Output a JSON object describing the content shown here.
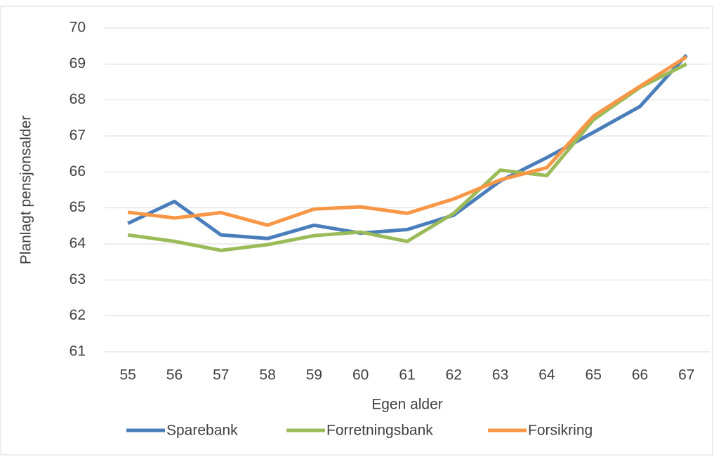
{
  "chart_data": {
    "type": "line",
    "x_label": "Egen alder",
    "y_label": "Planlagt pensjonsalder",
    "categories": [
      55,
      56,
      57,
      58,
      59,
      60,
      61,
      62,
      63,
      64,
      65,
      66,
      67
    ],
    "series": [
      {
        "name": "Sparebank",
        "color": "#4a7ebb",
        "values": [
          64.57,
          65.18,
          64.25,
          64.15,
          64.52,
          64.3,
          64.4,
          64.8,
          65.75,
          66.4,
          67.1,
          67.82,
          69.25
        ]
      },
      {
        "name": "Forretningsbank",
        "color": "#9bbb59",
        "values": [
          64.25,
          64.07,
          63.82,
          63.98,
          64.23,
          64.33,
          64.07,
          64.85,
          66.05,
          65.9,
          67.45,
          68.35,
          69.0
        ]
      },
      {
        "name": "Forsikring",
        "color": "#f79646",
        "values": [
          64.88,
          64.72,
          64.87,
          64.52,
          64.97,
          65.03,
          64.85,
          65.25,
          65.78,
          66.12,
          67.55,
          68.38,
          69.2
        ]
      }
    ],
    "ylim": [
      61,
      70
    ],
    "yticks": [
      61,
      62,
      63,
      64,
      65,
      66,
      67,
      68,
      69,
      70
    ],
    "grid": true,
    "legend": "bottom"
  }
}
